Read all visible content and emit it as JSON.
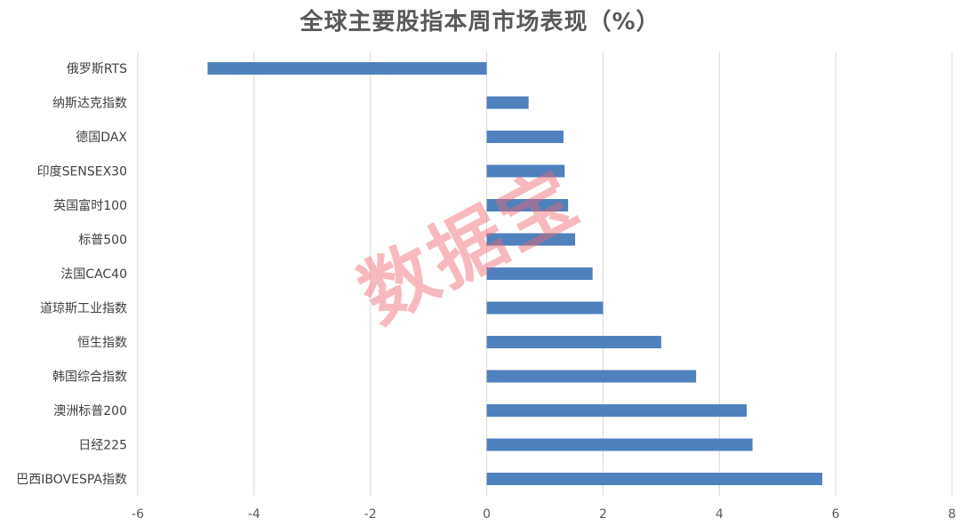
{
  "chart_data": {
    "type": "bar",
    "orientation": "horizontal",
    "title": "全球主要股指本周市场表现（%）",
    "categories": [
      "俄罗斯RTS",
      "纳斯达克指数",
      "德国DAX",
      "印度SENSEX30",
      "英国富时100",
      "标普500",
      "法国CAC40",
      "道琼斯工业指数",
      "恒生指数",
      "韩国综合指数",
      "澳洲标普200",
      "日经225",
      "巴西IBOVESPA指数"
    ],
    "values": [
      -4.8,
      0.72,
      1.32,
      1.34,
      1.4,
      1.52,
      1.82,
      2.0,
      3.0,
      3.6,
      4.47,
      4.57,
      5.77
    ],
    "xlim": [
      -6,
      8
    ],
    "xticks": [
      -6,
      -4,
      -2,
      0,
      2,
      4,
      6,
      8
    ],
    "xlabel": "",
    "ylabel": "",
    "grid": "vertical",
    "legend": "none",
    "bar_color": "#4f81bd"
  },
  "watermark": "数据宝"
}
